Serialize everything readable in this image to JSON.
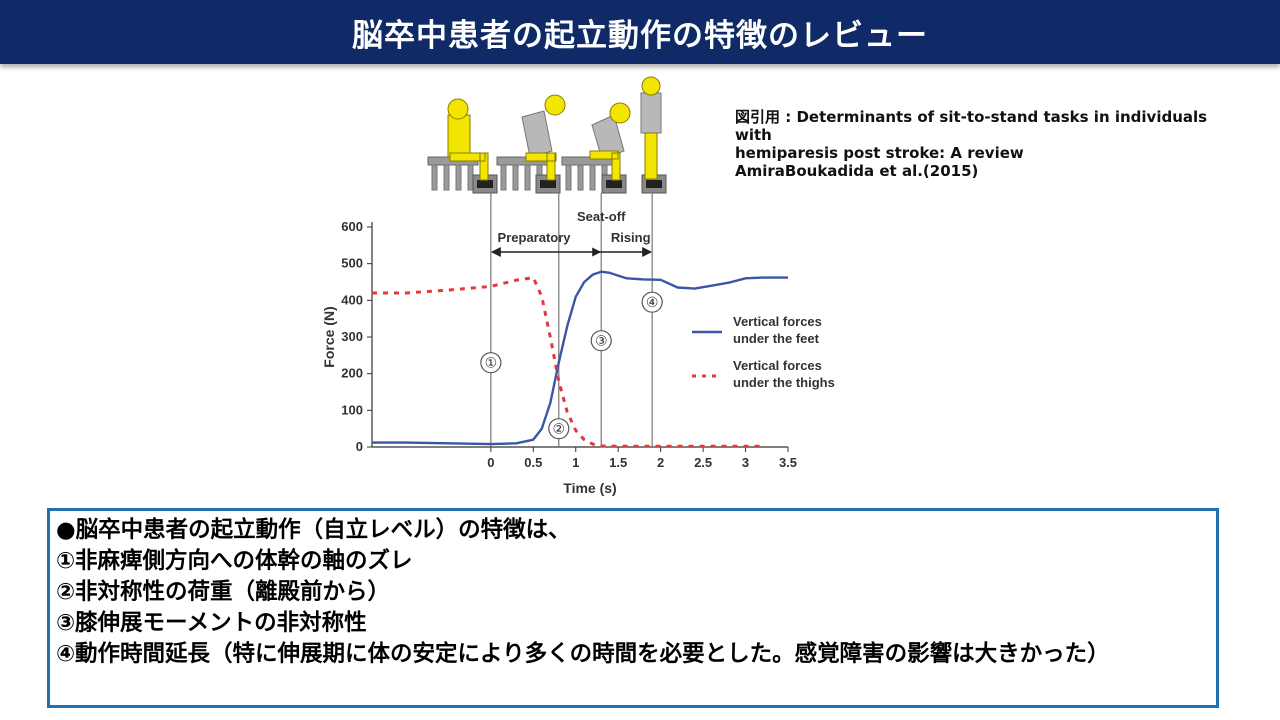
{
  "slide": {
    "title": "脳卒中患者の起立動作の特徴のレビュー",
    "citation": [
      "図引用 : Determinants of sit-to-stand tasks in individuals",
      "with",
      "hemiparesis post stroke: A review",
      "AmiraBoukadida et al.(2015)"
    ],
    "summary": [
      "●脳卒中患者の起立動作（自立レベル）の特徴は、",
      "①非麻痺側方向への体幹の軸のズレ",
      "②非対称性の荷重（離殿前から）",
      "③膝伸展モーメントの非対称性",
      "④動作時間延長（特に伸展期に体の安定により多くの時間を必要とした。感覚障害の影響は大きかった）"
    ]
  },
  "colors": {
    "title_bg": "#0f2a66",
    "feet_line": "#3a56a8",
    "thigh_line": "#e03a3a",
    "figure_yellow": "#f2e600",
    "box_border": "#1f6fb3"
  },
  "chart_data": {
    "type": "line",
    "xlabel": "Time (s)",
    "ylabel": "Force (N)",
    "xlim": [
      -1.4,
      3.5
    ],
    "ylim": [
      0,
      600
    ],
    "xticks": [
      0,
      0.5,
      1,
      1.5,
      2,
      2.5,
      3,
      3.5
    ],
    "xtick_labels": [
      "0",
      "0.5",
      "1",
      "1.5",
      "2",
      "2.5",
      "3",
      "3.5"
    ],
    "yticks": [
      0,
      100,
      200,
      300,
      400,
      500,
      600
    ],
    "ytick_labels": [
      "0",
      "100",
      "200",
      "300",
      "400",
      "500",
      "600"
    ],
    "grid": false,
    "legend_position": "right",
    "series": [
      {
        "name": "Vertical forces under the feet",
        "style": "solid",
        "x": [
          -1.4,
          -1.0,
          -0.5,
          0,
          0.3,
          0.5,
          0.6,
          0.7,
          0.8,
          0.9,
          1.0,
          1.1,
          1.2,
          1.3,
          1.4,
          1.6,
          1.8,
          2.0,
          2.2,
          2.4,
          2.6,
          2.8,
          3.0,
          3.2,
          3.5
        ],
        "y": [
          12,
          12,
          10,
          8,
          10,
          20,
          50,
          120,
          230,
          330,
          410,
          450,
          470,
          478,
          475,
          460,
          457,
          456,
          435,
          432,
          440,
          448,
          460,
          462,
          462
        ]
      },
      {
        "name": "Vertical forces under the thighs",
        "style": "dashed",
        "x": [
          -1.4,
          -1.0,
          -0.5,
          0,
          0.3,
          0.5,
          0.6,
          0.7,
          0.8,
          0.9,
          1.0,
          1.1,
          1.2,
          1.3,
          1.5,
          2.0,
          2.5,
          3.0,
          3.2
        ],
        "y": [
          420,
          420,
          428,
          438,
          455,
          462,
          410,
          300,
          180,
          95,
          45,
          20,
          8,
          3,
          2,
          2,
          2,
          2,
          2
        ]
      }
    ],
    "annotations": {
      "phases": [
        {
          "label": "Preparatory",
          "from": 0,
          "to": 1.3
        },
        {
          "label": "Seat-off",
          "at": 1.3
        },
        {
          "label": "Rising",
          "from": 1.3,
          "to": 1.9
        }
      ],
      "events": [
        {
          "label": "①",
          "x": 0,
          "y": 230
        },
        {
          "label": "②",
          "x": 0.8,
          "y": 50
        },
        {
          "label": "③",
          "x": 1.3,
          "y": 290
        },
        {
          "label": "④",
          "x": 1.9,
          "y": 395
        }
      ]
    }
  }
}
